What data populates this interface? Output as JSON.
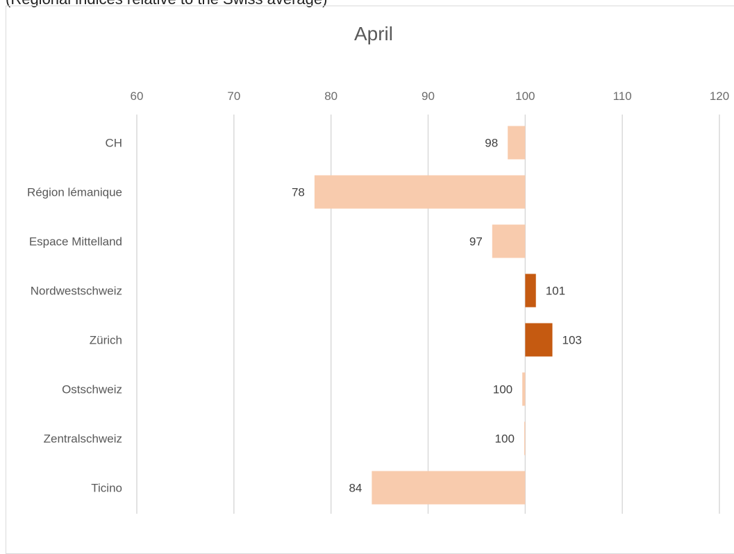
{
  "header": {
    "cut_text": "(Regional indices relative to the Swiss average)"
  },
  "chart_data": {
    "type": "bar",
    "orientation": "horizontal",
    "title": "April",
    "baseline": 100,
    "categories": [
      "CH",
      "Région lémanique",
      "Espace Mittelland",
      "Nordwestschweiz",
      "Zürich",
      "Ostschweiz",
      "Zentralschweiz",
      "Ticino"
    ],
    "values": [
      98.2,
      78.3,
      96.6,
      101.1,
      102.8,
      99.7,
      99.9,
      84.2
    ],
    "labels": [
      "98",
      "78",
      "97",
      "101",
      "103",
      "100",
      "100",
      "84"
    ],
    "xlim": [
      60,
      120
    ],
    "xticks": [
      60,
      70,
      80,
      90,
      100,
      110,
      120
    ],
    "xaxis_position": "top",
    "grid": true,
    "colors": {
      "below": "#f8cbad",
      "above": "#c55a11"
    }
  }
}
